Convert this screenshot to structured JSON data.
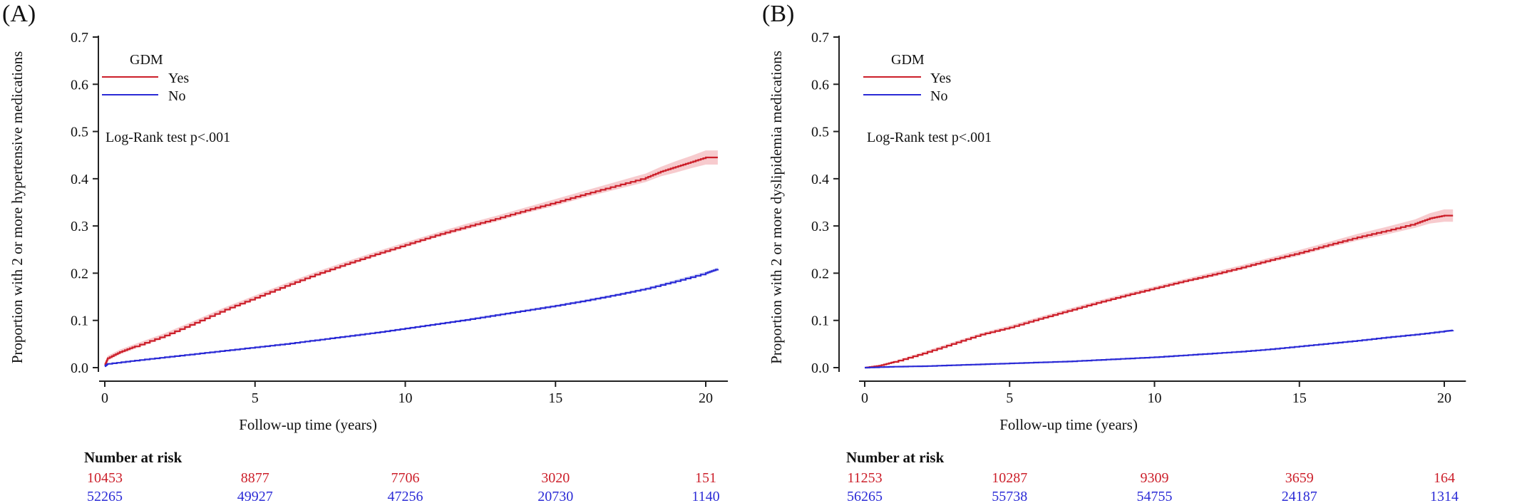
{
  "colors": {
    "yes": "#cc1f2a",
    "yes_band": "#f4b9bd",
    "no": "#2b2bd6",
    "no_band": "#b9c0f2",
    "axis": "#222222",
    "text": "#111111"
  },
  "chart_data": [
    {
      "panel_label": "(A)",
      "type": "line",
      "xlabel": "Follow-up time (years)",
      "ylabel": "Proportion with 2 or more hypertensive medications",
      "xlim": [
        0,
        20.5
      ],
      "ylim": [
        0,
        0.7
      ],
      "xticks": [
        0,
        5,
        10,
        15,
        20
      ],
      "yticks": [
        0.0,
        0.1,
        0.2,
        0.3,
        0.4,
        0.5,
        0.6,
        0.7
      ],
      "ytick_labels": [
        "0.0",
        "0.1",
        "0.2",
        "0.3",
        "0.4",
        "0.5",
        "0.6",
        "0.7"
      ],
      "grid": false,
      "legend": {
        "title": "GDM",
        "placement": "top-left"
      },
      "annotation": "Log-Rank test p<.001",
      "series": [
        {
          "name": "Yes",
          "color_key": "yes",
          "x": [
            0,
            0.1,
            0.5,
            1,
            2,
            3,
            4,
            5,
            6,
            7,
            8,
            9,
            10,
            11,
            12,
            13,
            14,
            15,
            16,
            17,
            18,
            18.5,
            19,
            19.5,
            20,
            20.4
          ],
          "y": [
            0.005,
            0.02,
            0.033,
            0.045,
            0.068,
            0.095,
            0.123,
            0.148,
            0.173,
            0.197,
            0.219,
            0.24,
            0.26,
            0.28,
            0.298,
            0.315,
            0.333,
            0.35,
            0.368,
            0.385,
            0.402,
            0.415,
            0.425,
            0.435,
            0.445,
            0.445
          ],
          "ci_halfwidth": [
            0.004,
            0.005,
            0.005,
            0.005,
            0.005,
            0.005,
            0.005,
            0.005,
            0.005,
            0.005,
            0.005,
            0.005,
            0.005,
            0.005,
            0.006,
            0.006,
            0.006,
            0.007,
            0.007,
            0.008,
            0.009,
            0.01,
            0.012,
            0.013,
            0.015,
            0.015
          ]
        },
        {
          "name": "No",
          "color_key": "no",
          "x": [
            0,
            0.1,
            1,
            2,
            3,
            4,
            5,
            6,
            7,
            8,
            9,
            10,
            11,
            12,
            13,
            14,
            15,
            16,
            17,
            18,
            19,
            20,
            20.4
          ],
          "y": [
            0.003,
            0.008,
            0.015,
            0.022,
            0.029,
            0.036,
            0.043,
            0.05,
            0.058,
            0.066,
            0.074,
            0.083,
            0.092,
            0.101,
            0.111,
            0.121,
            0.131,
            0.142,
            0.154,
            0.167,
            0.183,
            0.2,
            0.209
          ],
          "ci_halfwidth": [
            0.001,
            0.001,
            0.001,
            0.001,
            0.001,
            0.001,
            0.001,
            0.001,
            0.001,
            0.001,
            0.001,
            0.001,
            0.001,
            0.002,
            0.002,
            0.002,
            0.002,
            0.002,
            0.002,
            0.002,
            0.003,
            0.003,
            0.003
          ]
        }
      ],
      "risk_table": {
        "title": "Number at risk",
        "rows": [
          {
            "name": "Yes",
            "color_key": "yes",
            "values": [
              "10453",
              "8877",
              "7706",
              "3020",
              "151"
            ]
          },
          {
            "name": "No",
            "color_key": "no",
            "values": [
              "52265",
              "49927",
              "47256",
              "20730",
              "1140"
            ]
          }
        ]
      }
    },
    {
      "panel_label": "(B)",
      "type": "line",
      "xlabel": "Follow-up time (years)",
      "ylabel": "Proportion with 2 or more dyslipidemia medications",
      "xlim": [
        0,
        20.5
      ],
      "ylim": [
        0,
        0.7
      ],
      "xticks": [
        0,
        5,
        10,
        15,
        20
      ],
      "yticks": [
        0.0,
        0.1,
        0.2,
        0.3,
        0.4,
        0.5,
        0.6,
        0.7
      ],
      "ytick_labels": [
        "0.0",
        "0.1",
        "0.2",
        "0.3",
        "0.4",
        "0.5",
        "0.6",
        "0.7"
      ],
      "grid": false,
      "legend": {
        "title": "GDM",
        "placement": "top-left"
      },
      "annotation": "Log-Rank test p<.001",
      "series": [
        {
          "name": "Yes",
          "color_key": "yes",
          "x": [
            0,
            0.5,
            1,
            2,
            3,
            4,
            5,
            6,
            7,
            8,
            9,
            10,
            11,
            12,
            13,
            14,
            15,
            16,
            17,
            18,
            19,
            19.5,
            20,
            20.3
          ],
          "y": [
            0.0,
            0.004,
            0.012,
            0.03,
            0.05,
            0.07,
            0.085,
            0.103,
            0.12,
            0.137,
            0.153,
            0.168,
            0.183,
            0.197,
            0.212,
            0.228,
            0.243,
            0.26,
            0.276,
            0.29,
            0.305,
            0.316,
            0.322,
            0.322
          ],
          "ci_halfwidth": [
            0.001,
            0.002,
            0.002,
            0.003,
            0.003,
            0.003,
            0.004,
            0.004,
            0.004,
            0.004,
            0.004,
            0.004,
            0.004,
            0.005,
            0.005,
            0.005,
            0.006,
            0.006,
            0.007,
            0.008,
            0.009,
            0.011,
            0.013,
            0.013
          ]
        },
        {
          "name": "No",
          "color_key": "no",
          "x": [
            0,
            1,
            2,
            3,
            4,
            5,
            6,
            7,
            8,
            9,
            10,
            11,
            12,
            13,
            14,
            15,
            16,
            17,
            18,
            19,
            20,
            20.3
          ],
          "y": [
            0.0,
            0.002,
            0.003,
            0.005,
            0.007,
            0.009,
            0.011,
            0.013,
            0.016,
            0.019,
            0.022,
            0.026,
            0.03,
            0.034,
            0.039,
            0.045,
            0.051,
            0.057,
            0.064,
            0.07,
            0.077,
            0.079
          ],
          "ci_halfwidth": [
            0.0005,
            0.0005,
            0.0005,
            0.0005,
            0.0005,
            0.0005,
            0.0005,
            0.0005,
            0.0006,
            0.0006,
            0.0007,
            0.0007,
            0.0008,
            0.0008,
            0.0009,
            0.001,
            0.001,
            0.0012,
            0.0013,
            0.0015,
            0.0017,
            0.0017
          ]
        }
      ],
      "risk_table": {
        "title": "Number at risk",
        "rows": [
          {
            "name": "Yes",
            "color_key": "yes",
            "values": [
              "11253",
              "10287",
              "9309",
              "3659",
              "164"
            ]
          },
          {
            "name": "No",
            "color_key": "no",
            "values": [
              "56265",
              "55738",
              "54755",
              "24187",
              "1314"
            ]
          }
        ]
      }
    }
  ]
}
